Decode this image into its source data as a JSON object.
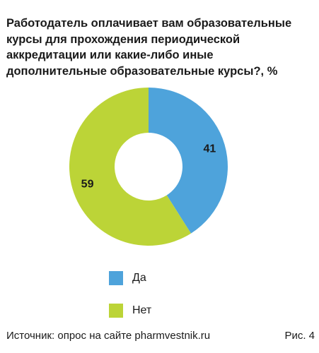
{
  "chart_data": {
    "type": "pie",
    "donut": true,
    "title": "Работодатель оплачивает вам образовательные курсы для прохождения периодической аккредитации или какие-либо иные дополнительные образовательные курсы?, %",
    "categories": [
      "Да",
      "Нет"
    ],
    "values": [
      41,
      59
    ],
    "colors": [
      "#4ea3db",
      "#bcd437"
    ],
    "legend_position": "bottom-left",
    "data_labels": [
      "41",
      "59"
    ]
  },
  "legend": [
    {
      "label": "Да",
      "color": "#4ea3db"
    },
    {
      "label": "Нет",
      "color": "#bcd437"
    }
  ],
  "footer": {
    "source": "Источник: опрос на сайте pharmvestnik.ru",
    "figure": "Рис. 4"
  }
}
